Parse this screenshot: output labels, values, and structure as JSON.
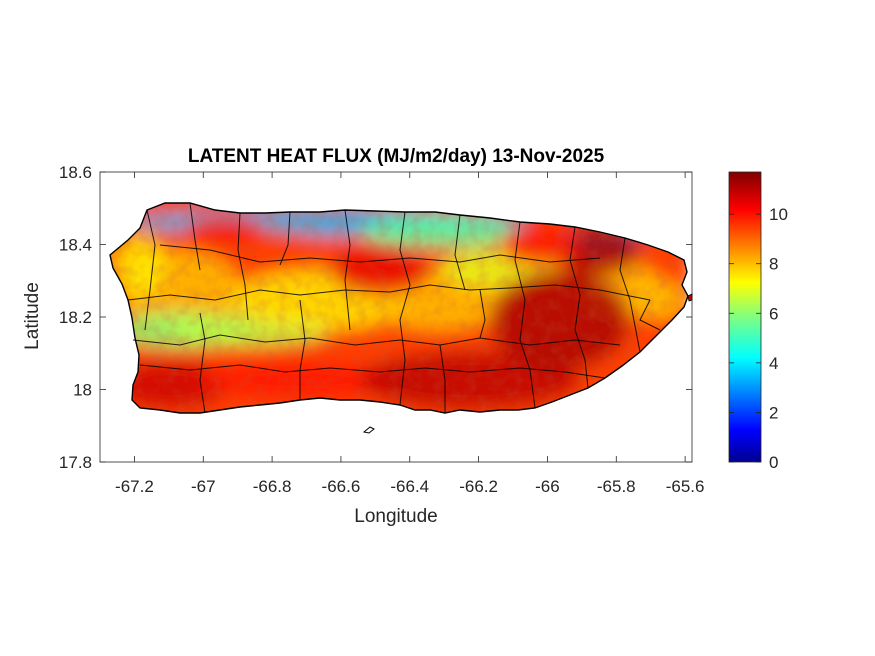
{
  "chart_data": {
    "type": "heatmap",
    "title": "LATENT HEAT FLUX (MJ/m2/day) 13-Nov-2025",
    "xlabel": "Longitude",
    "ylabel": "Latitude",
    "xlim": [
      -67.3,
      -65.58
    ],
    "ylim": [
      17.8,
      18.6
    ],
    "xticks": [
      -67.2,
      -67,
      -66.8,
      -66.6,
      -66.4,
      -66.2,
      -66,
      -65.8,
      -65.6
    ],
    "xtick_labels": [
      "-67.2",
      "-67",
      "-66.8",
      "-66.6",
      "-66.4",
      "-66.2",
      "-66",
      "-65.8",
      "-65.6"
    ],
    "yticks": [
      17.8,
      18,
      18.2,
      18.4,
      18.6
    ],
    "ytick_labels": [
      "17.8",
      "18",
      "18.2",
      "18.4",
      "18.6"
    ],
    "colorbar": {
      "colormap": "jet",
      "range": [
        0,
        11.7
      ],
      "ticks": [
        0,
        2,
        4,
        6,
        8,
        10
      ],
      "tick_labels": [
        "0",
        "2",
        "4",
        "6",
        "8",
        "10"
      ]
    },
    "regions": [
      {
        "area": "north coast",
        "value": 4
      },
      {
        "area": "northwest interior",
        "value": 9
      },
      {
        "area": "west-central band",
        "value": 6.5
      },
      {
        "area": "central interior",
        "value": 8
      },
      {
        "area": "south coast",
        "value": 10.5
      },
      {
        "area": "southeast",
        "value": 11
      },
      {
        "area": "northeast",
        "value": 10.5
      },
      {
        "area": "east coast",
        "value": 9
      }
    ],
    "grid": false,
    "legend": "none"
  }
}
